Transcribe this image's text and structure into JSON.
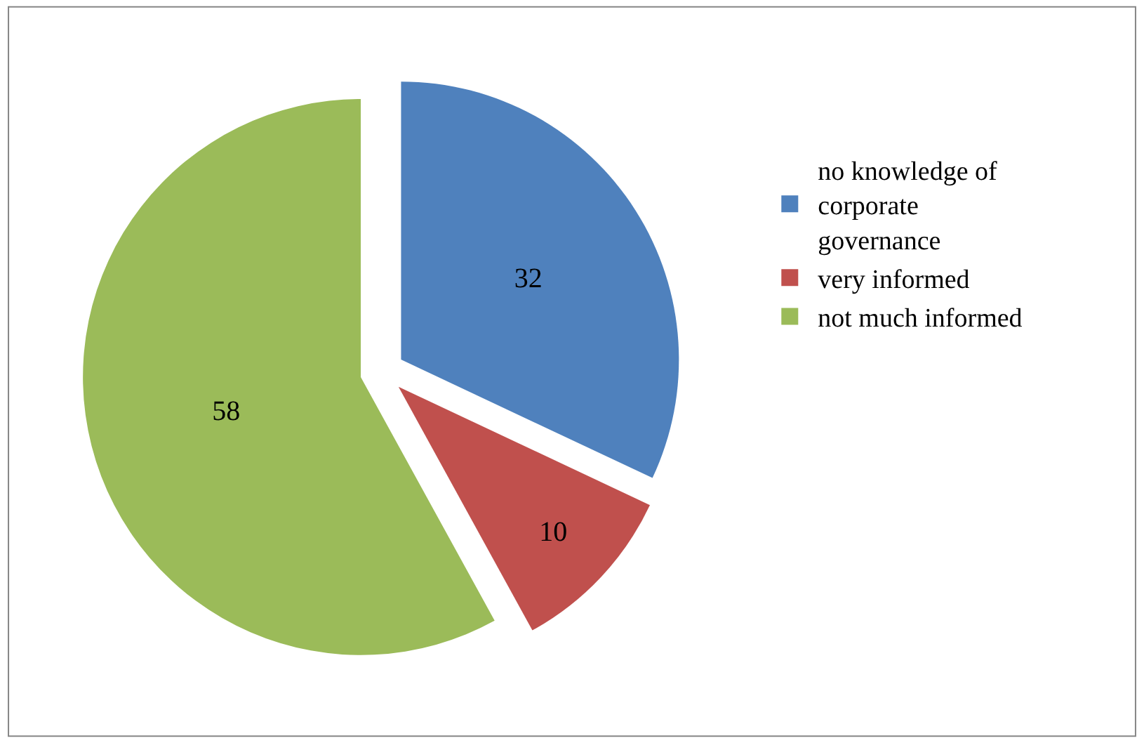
{
  "chart_data": {
    "type": "pie",
    "categories": [
      "no knowledge of corporate governance",
      "very informed",
      "not much informed"
    ],
    "values": [
      32,
      10,
      58
    ],
    "colors": [
      "#4f81bd",
      "#c0504d",
      "#9bbb59"
    ],
    "data_labels": true,
    "legend": "right"
  }
}
